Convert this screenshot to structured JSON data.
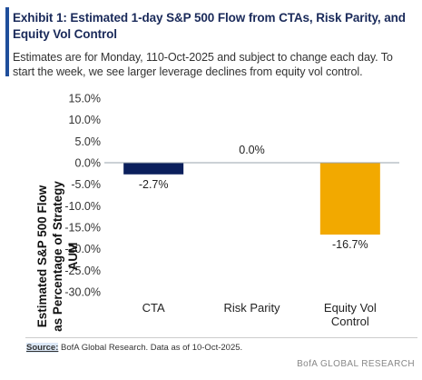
{
  "header": {
    "title": "Exhibit 1: Estimated 1-day S&P 500 Flow from CTAs, Risk Parity, and Equity Vol Control",
    "subtitle": "Estimates are for Monday, 110-Oct-2025 and subject to change each day.  To start the week, we see larger leverage declines from equity vol control.",
    "accent_color": "#1f4e9b"
  },
  "chart_data": {
    "type": "bar",
    "categories": [
      "CTA",
      "Risk Parity",
      "Equity Vol Control"
    ],
    "category_lines": [
      [
        "CTA"
      ],
      [
        "Risk Parity"
      ],
      [
        "Equity Vol",
        "Control"
      ]
    ],
    "values": [
      -2.7,
      0.0,
      -16.7
    ],
    "data_labels": [
      "-2.7%",
      "0.0%",
      "-16.7%"
    ],
    "bar_colors": [
      "#0b1f5c",
      "#0b1f5c",
      "#f2a900"
    ],
    "ylabel": "Estimated S&P 500 Flow as Percentage  of Strategy AUM",
    "ylim": [
      -30,
      15
    ],
    "yticks": [
      15,
      10,
      5,
      0,
      -5,
      -10,
      -15,
      -20,
      -25,
      -30
    ],
    "ytick_labels": [
      "15.0%",
      "10.0%",
      "5.0%",
      "0.0%",
      "-5.0%",
      "-10.0%",
      "-15.0%",
      "-20.0%",
      "-25.0%",
      "-30.0%"
    ],
    "grid": false,
    "legend": false
  },
  "footer": {
    "source_label": "Source:",
    "source_text": " BofA Global Research.  Data as of 10-Oct-2025.",
    "brand": "BofA GLOBAL RESEARCH"
  }
}
